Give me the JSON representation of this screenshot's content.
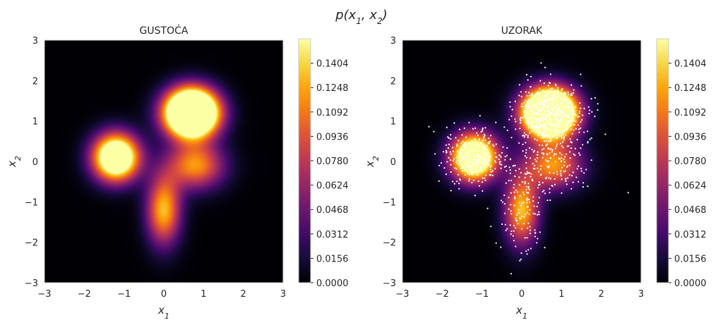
{
  "figure": {
    "suptitle_main": "p(x",
    "suptitle_sub1": "1",
    "suptitle_comma": ", x",
    "suptitle_sub2": "2",
    "suptitle_close": ")"
  },
  "chart_data": [
    {
      "type": "heatmap",
      "title": "GUSTOĆA",
      "xlabel": "x",
      "xlabel_sub": "1",
      "ylabel": "x",
      "ylabel_sub": "2",
      "xlim": [
        -3,
        3
      ],
      "ylim": [
        -3,
        3
      ],
      "xticks": [
        "−3",
        "−2",
        "−1",
        "0",
        "1",
        "2",
        "3"
      ],
      "yticks": [
        "−3",
        "−2",
        "−1",
        "0",
        "1",
        "2",
        "3"
      ],
      "colormap": "inferno",
      "colorbar": {
        "min": 0.0,
        "max": 0.156,
        "ticks": [
          "0.0000",
          "0.0156",
          "0.0312",
          "0.0468",
          "0.0624",
          "0.0780",
          "0.0936",
          "0.1092",
          "0.1248",
          "0.1404"
        ]
      },
      "density_components": [
        {
          "mx": 0.7,
          "my": 1.2,
          "sx": 0.45,
          "sy": 0.4,
          "weight": 0.45
        },
        {
          "mx": -1.2,
          "my": 0.1,
          "sx": 0.4,
          "sy": 0.4,
          "weight": 0.25
        },
        {
          "mx": 0.0,
          "my": -1.2,
          "sx": 0.3,
          "sy": 0.6,
          "weight": 0.15
        },
        {
          "mx": 0.8,
          "my": -0.1,
          "sx": 0.5,
          "sy": 0.4,
          "weight": 0.15
        }
      ],
      "grid": false
    },
    {
      "type": "heatmap",
      "title": "UZORAK",
      "xlabel": "x",
      "xlabel_sub": "1",
      "ylabel": "x",
      "ylabel_sub": "2",
      "xlim": [
        -3,
        3
      ],
      "ylim": [
        -3,
        3
      ],
      "xticks": [
        "−3",
        "−2",
        "−1",
        "0",
        "1",
        "2",
        "3"
      ],
      "yticks": [
        "−3",
        "−2",
        "−1",
        "0",
        "1",
        "2",
        "3"
      ],
      "colormap": "inferno",
      "colorbar": {
        "min": 0.0,
        "max": 0.156,
        "ticks": [
          "0.0000",
          "0.0156",
          "0.0312",
          "0.0468",
          "0.0624",
          "0.0780",
          "0.0936",
          "0.1092",
          "0.1248",
          "0.1404"
        ]
      },
      "sample_overlay": {
        "color": "#ffffff",
        "n_points": 1000,
        "seed": 7
      },
      "grid": false
    }
  ]
}
